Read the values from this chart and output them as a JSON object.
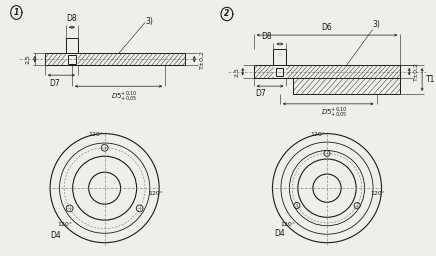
{
  "bg_color": "#efefea",
  "line_color": "#1a1a1a",
  "dim_color": "#1a1a1a",
  "hatch_color": "#444444",
  "center_color": "#888888",
  "label_D8": "D8",
  "label_D7": "D7",
  "label_D5": "D5",
  "label_D6": "D6",
  "label_D4": "D4",
  "label_25": "2,5",
  "label_T02": "T±0,2",
  "label_T1": "T1",
  "label_3": "3)",
  "label_120": "120°",
  "fs": 5.5,
  "fs_small": 4.5
}
